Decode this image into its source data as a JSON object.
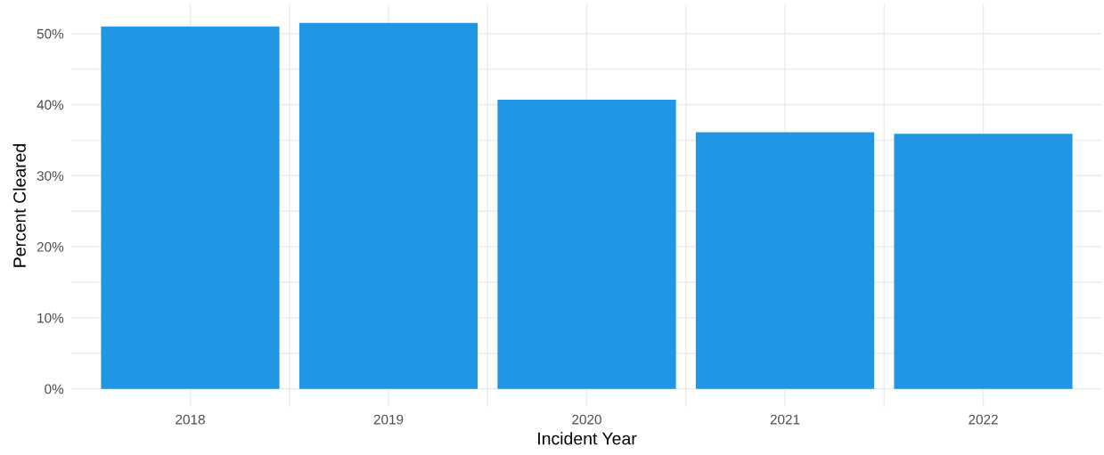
{
  "chart_data": {
    "type": "bar",
    "xlabel": "Incident Year",
    "ylabel": "Percent Cleared",
    "categories": [
      "2018",
      "2019",
      "2020",
      "2021",
      "2022"
    ],
    "values": [
      51.0,
      51.5,
      40.7,
      36.1,
      35.9
    ],
    "color": "#2196e5",
    "ylim": [
      -2.55,
      54.1
    ],
    "yticks": [
      {
        "value": 0,
        "label": "0%"
      },
      {
        "value": 5,
        "label": null
      },
      {
        "value": 10,
        "label": "10%"
      },
      {
        "value": 15,
        "label": null
      },
      {
        "value": 20,
        "label": "20%"
      },
      {
        "value": 25,
        "label": null
      },
      {
        "value": 30,
        "label": "30%"
      },
      {
        "value": 35,
        "label": null
      },
      {
        "value": 40,
        "label": "40%"
      },
      {
        "value": 45,
        "label": null
      },
      {
        "value": 50,
        "label": "50%"
      }
    ],
    "grid": true
  }
}
